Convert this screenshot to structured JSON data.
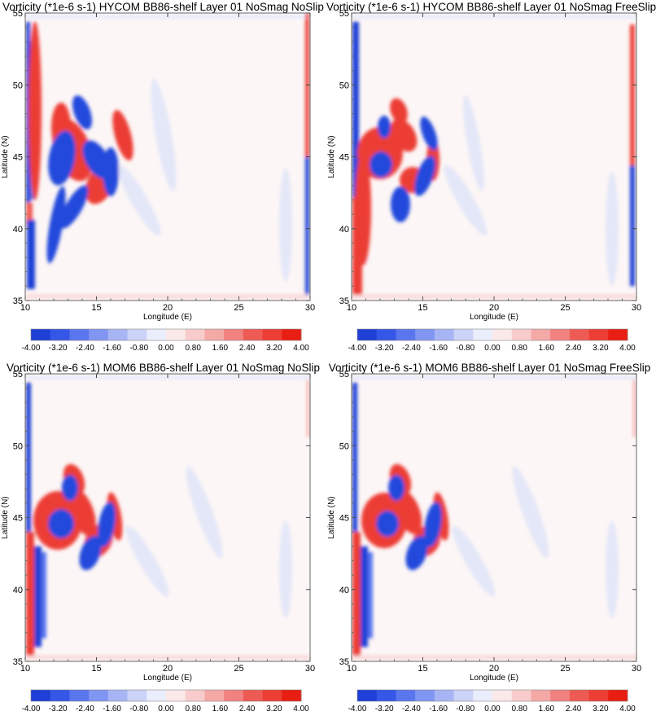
{
  "colors": {
    "negative_strong": "#1f3fd6",
    "positive_strong": "#ee2a1f",
    "background": "#ffffff",
    "frame": "#666666"
  },
  "chart_data": [
    {
      "type": "heatmap",
      "title": "Vorticity (*1e-6 s-1) HYCOM BB86-shelf Layer 01 NoSmag NoSlip",
      "xlabel": "Longitude (E)",
      "ylabel": "Latitude (N)",
      "xlim": [
        10,
        30
      ],
      "ylim": [
        35,
        55
      ],
      "x_ticks": [
        "10",
        "15",
        "20",
        "25",
        "30"
      ],
      "y_ticks": [
        "35",
        "40",
        "45",
        "50",
        "55"
      ],
      "colorbar": {
        "range": [
          -4.0,
          4.0
        ],
        "labels": [
          "-4.00",
          "-3.20",
          "-2.40",
          "-1.60",
          "-0.80",
          "0.00",
          "0.80",
          "1.60",
          "2.40",
          "3.20",
          "4.00"
        ],
        "colors": [
          "#1f3fd6",
          "#3556e6",
          "#5a76ee",
          "#8196f2",
          "#a8b5f4",
          "#ccd3f8",
          "#eaedfb",
          "#fbe9e9",
          "#f8cccc",
          "#f4a9a7",
          "#f1827f",
          "#ee5b55",
          "#ec3e35",
          "#e81e12"
        ]
      }
    },
    {
      "type": "heatmap",
      "title": "Vorticity (*1e-6 s-1) HYCOM BB86-shelf Layer 01 NoSmag FreeSlip",
      "xlabel": "Longitude (E)",
      "ylabel": "Latitude (N)",
      "xlim": [
        10,
        30
      ],
      "ylim": [
        35,
        55
      ],
      "x_ticks": [
        "10",
        "15",
        "20",
        "25",
        "30"
      ],
      "y_ticks": [
        "35",
        "40",
        "45",
        "50",
        "55"
      ],
      "colorbar": {
        "range": [
          -4.0,
          4.0
        ],
        "labels": [
          "-4.00",
          "-3.20",
          "-2.40",
          "-1.60",
          "-0.80",
          "0.00",
          "0.80",
          "1.60",
          "2.40",
          "3.20",
          "4.00"
        ],
        "colors": [
          "#1f3fd6",
          "#3556e6",
          "#5a76ee",
          "#8196f2",
          "#a8b5f4",
          "#ccd3f8",
          "#eaedfb",
          "#fbe9e9",
          "#f8cccc",
          "#f4a9a7",
          "#f1827f",
          "#ee5b55",
          "#ec3e35",
          "#e81e12"
        ]
      }
    },
    {
      "type": "heatmap",
      "title": "Vorticity (*1e-6 s-1) MOM6 BB86-shelf Layer 01 NoSmag NoSlip",
      "xlabel": "Longitude (E)",
      "ylabel": "Latitude (N)",
      "xlim": [
        10,
        30
      ],
      "ylim": [
        35,
        55
      ],
      "x_ticks": [
        "10",
        "15",
        "20",
        "25",
        "30"
      ],
      "y_ticks": [
        "35",
        "40",
        "45",
        "50",
        "55"
      ],
      "colorbar": {
        "range": [
          -4.0,
          4.0
        ],
        "labels": [
          "-4.00",
          "-3.20",
          "-2.40",
          "-1.60",
          "-0.80",
          "0.00",
          "0.80",
          "1.60",
          "2.40",
          "3.20",
          "4.00"
        ],
        "colors": [
          "#1f3fd6",
          "#3556e6",
          "#5a76ee",
          "#8196f2",
          "#a8b5f4",
          "#ccd3f8",
          "#eaedfb",
          "#fbe9e9",
          "#f8cccc",
          "#f4a9a7",
          "#f1827f",
          "#ee5b55",
          "#ec3e35",
          "#e81e12"
        ]
      }
    },
    {
      "type": "heatmap",
      "title": "Vorticity (*1e-6 s-1) MOM6 BB86-shelf Layer 01 NoSmag FreeSlip",
      "xlabel": "Longitude (E)",
      "ylabel": "Latitude (N)",
      "xlim": [
        10,
        30
      ],
      "ylim": [
        35,
        55
      ],
      "x_ticks": [
        "10",
        "15",
        "20",
        "25",
        "30"
      ],
      "y_ticks": [
        "35",
        "40",
        "45",
        "50",
        "55"
      ],
      "colorbar": {
        "range": [
          -4.0,
          4.0
        ],
        "labels": [
          "-4.00",
          "-3.20",
          "-2.40",
          "-1.60",
          "-0.80",
          "0.00",
          "0.80",
          "1.60",
          "2.40",
          "3.20",
          "4.00"
        ],
        "colors": [
          "#1f3fd6",
          "#3556e6",
          "#5a76ee",
          "#8196f2",
          "#a8b5f4",
          "#ccd3f8",
          "#eaedfb",
          "#fbe9e9",
          "#f8cccc",
          "#f4a9a7",
          "#f1827f",
          "#ee5b55",
          "#ec3e35",
          "#e81e12"
        ]
      }
    }
  ]
}
